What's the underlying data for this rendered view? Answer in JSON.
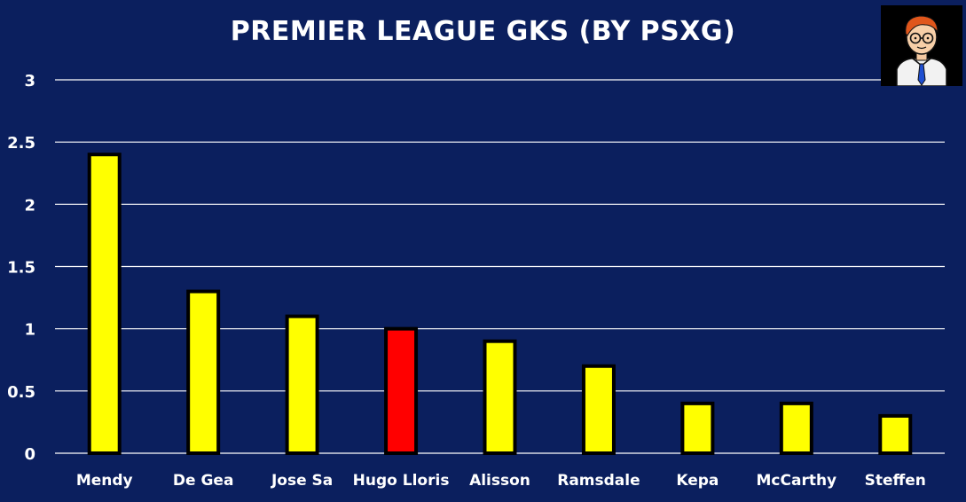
{
  "chart_data": {
    "type": "bar",
    "title": "PREMIER LEAGUE GKS (BY PSXG)",
    "categories": [
      "Mendy",
      "De Gea",
      "Jose Sa",
      "Hugo Lloris",
      "Alisson",
      "Ramsdale",
      "Kepa",
      "McCarthy",
      "Steffen"
    ],
    "values": [
      2.4,
      1.3,
      1.1,
      1.0,
      0.9,
      0.7,
      0.4,
      0.4,
      0.3
    ],
    "highlight": "Hugo Lloris",
    "yticks": [
      "0",
      "0.5",
      "1",
      "1.5",
      "2",
      "2.5",
      "3"
    ],
    "ylim": [
      0,
      3
    ],
    "grid": true,
    "legend": "none"
  },
  "colors": {
    "background": "#0b1f5e",
    "bar": "#ffff00",
    "highlight_bar": "#ff0000",
    "bar_outline": "#000000",
    "gridline": "#ffffff",
    "text": "#ffffff"
  },
  "logo": {
    "icon": "cartoon-avatar-icon"
  }
}
